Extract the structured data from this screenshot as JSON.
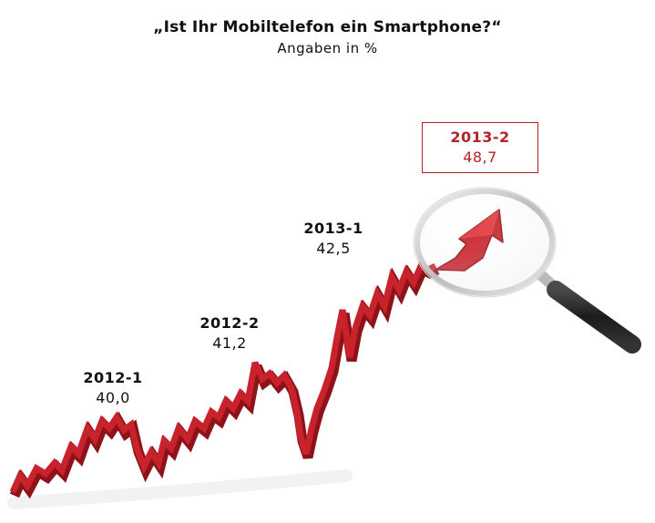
{
  "chart_data": {
    "type": "line",
    "title": "„Ist Ihr Mobiltelefon ein Smartphone?“",
    "subtitle": "Angaben in %",
    "categories": [
      "2012-1",
      "2012-2",
      "2013-1",
      "2013-2"
    ],
    "values": [
      40.0,
      41.2,
      42.5,
      48.7
    ],
    "value_labels": [
      "40,0",
      "41,2",
      "42,5",
      "48,7"
    ],
    "highlighted": "2013-2",
    "colors": {
      "line": "#c8232c",
      "line_dark": "#8e1218",
      "highlight": "#b5232a",
      "lens_ring": "#cfcfcf",
      "handle": "#2a2a2a"
    },
    "decorations": [
      "rising-arrow-icon",
      "magnifying-glass-icon"
    ]
  }
}
